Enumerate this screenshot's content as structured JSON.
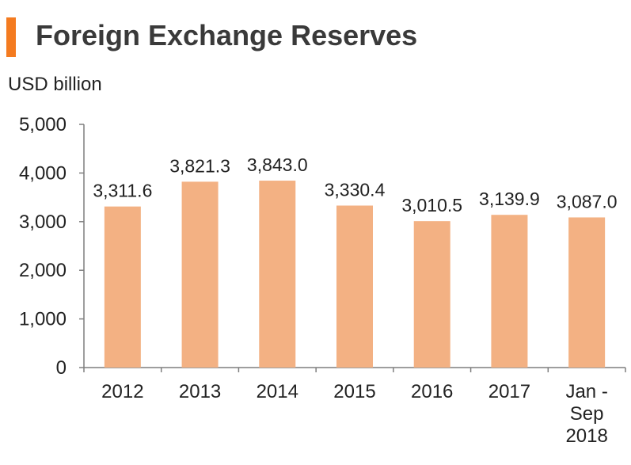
{
  "title": "Foreign Exchange Reserves",
  "unit_label": "USD billion",
  "colors": {
    "accent": "#f47b20",
    "bar": "#f3b183",
    "axis": "#7f7f7f"
  },
  "chart_data": {
    "type": "bar",
    "title": "Foreign Exchange Reserves",
    "ylabel": "USD billion",
    "xlabel": "",
    "categories": [
      "2012",
      "2013",
      "2014",
      "2015",
      "2016",
      "2017",
      "Jan - Sep 2018"
    ],
    "category_label_lines": [
      [
        "2012"
      ],
      [
        "2013"
      ],
      [
        "2014"
      ],
      [
        "2015"
      ],
      [
        "2016"
      ],
      [
        "2017"
      ],
      [
        "Jan -",
        "Sep",
        "2018"
      ]
    ],
    "values": [
      3311.6,
      3821.3,
      3843.0,
      3330.4,
      3010.5,
      3139.9,
      3087.0
    ],
    "value_labels": [
      "3,311.6",
      "3,821.3",
      "3,843.0",
      "3,330.4",
      "3,010.5",
      "3,139.9",
      "3,087.0"
    ],
    "ylim": [
      0,
      5000
    ],
    "y_ticks": [
      0,
      1000,
      2000,
      3000,
      4000,
      5000
    ],
    "y_tick_labels": [
      "0",
      "1,000",
      "2,000",
      "3,000",
      "4,000",
      "5,000"
    ],
    "grid": false,
    "legend": "none"
  }
}
